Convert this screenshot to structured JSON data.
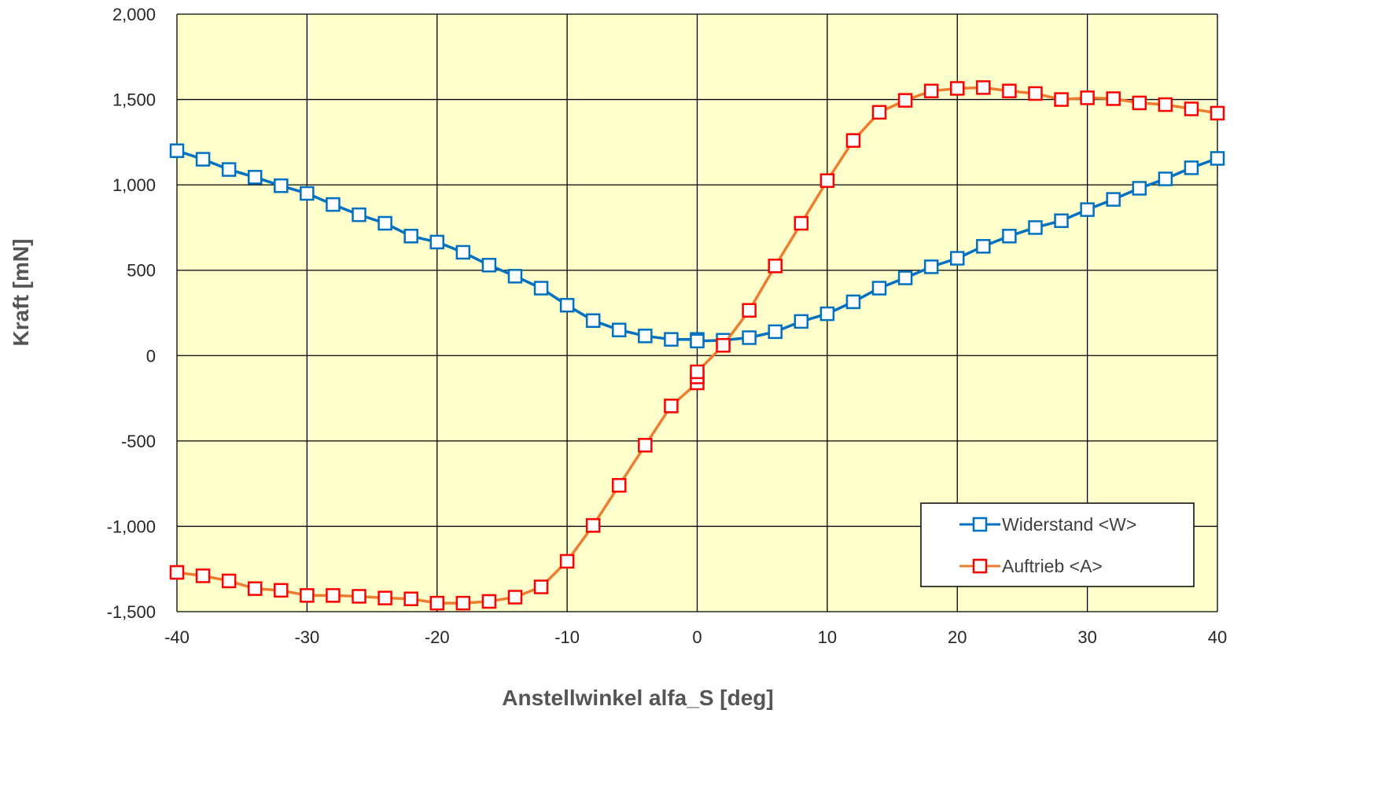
{
  "chart_data": {
    "type": "line",
    "xlabel": "Anstellwinkel alfa_S [deg]",
    "ylabel": "Kraft [mN]",
    "xlim": [
      -40,
      40
    ],
    "ylim": [
      -1500,
      2000
    ],
    "xticks": [
      -40,
      -30,
      -20,
      -10,
      0,
      10,
      20,
      30,
      40
    ],
    "yticks": [
      -1500,
      -1000,
      -500,
      0,
      500,
      1000,
      1500,
      2000
    ],
    "xtick_labels": [
      "-40",
      "-30",
      "-20",
      "-10",
      "0",
      "10",
      "20",
      "30",
      "40"
    ],
    "ytick_labels": [
      "-1,500",
      "-1,000",
      "-500",
      "0",
      "500",
      "1,000",
      "1,500",
      "2,000"
    ],
    "grid": true,
    "plot_background": "#ffffcc",
    "legend_position": "bottom-right",
    "marker": "square",
    "series": [
      {
        "name": "Widerstand <W>",
        "line_color": "#0070c0",
        "marker_color": "#0070c0",
        "x": [
          -40,
          -38,
          -36,
          -34,
          -32,
          -30,
          -28,
          -26,
          -24,
          -22,
          -20,
          -18,
          -16,
          -14,
          -12,
          -10,
          -8,
          -6,
          -4,
          -2,
          0,
          0,
          2,
          4,
          6,
          8,
          10,
          12,
          14,
          16,
          18,
          20,
          22,
          24,
          26,
          28,
          30,
          32,
          34,
          36,
          38,
          40
        ],
        "y": [
          1200,
          1150,
          1090,
          1045,
          995,
          950,
          885,
          825,
          775,
          700,
          665,
          605,
          530,
          465,
          395,
          295,
          205,
          150,
          115,
          95,
          95,
          85,
          90,
          105,
          140,
          200,
          245,
          315,
          395,
          455,
          520,
          570,
          640,
          700,
          750,
          790,
          855,
          915,
          980,
          1035,
          1100,
          1155
        ]
      },
      {
        "name": "Auftrieb <A>",
        "line_color": "#ed7d31",
        "marker_color": "#ff0000",
        "x": [
          -40,
          -38,
          -36,
          -34,
          -32,
          -30,
          -28,
          -26,
          -24,
          -22,
          -20,
          -18,
          -16,
          -14,
          -12,
          -10,
          -8,
          -6,
          -4,
          -2,
          0,
          0,
          0,
          2,
          4,
          6,
          8,
          10,
          12,
          14,
          16,
          18,
          20,
          22,
          24,
          26,
          28,
          30,
          32,
          34,
          36,
          38,
          40
        ],
        "y": [
          -1270,
          -1290,
          -1320,
          -1365,
          -1375,
          -1405,
          -1405,
          -1410,
          -1420,
          -1425,
          -1450,
          -1450,
          -1440,
          -1415,
          -1355,
          -1205,
          -995,
          -760,
          -525,
          -295,
          -160,
          -125,
          -95,
          60,
          265,
          525,
          775,
          1025,
          1260,
          1425,
          1495,
          1550,
          1565,
          1570,
          1550,
          1535,
          1500,
          1510,
          1505,
          1480,
          1470,
          1445,
          1420
        ]
      }
    ]
  }
}
